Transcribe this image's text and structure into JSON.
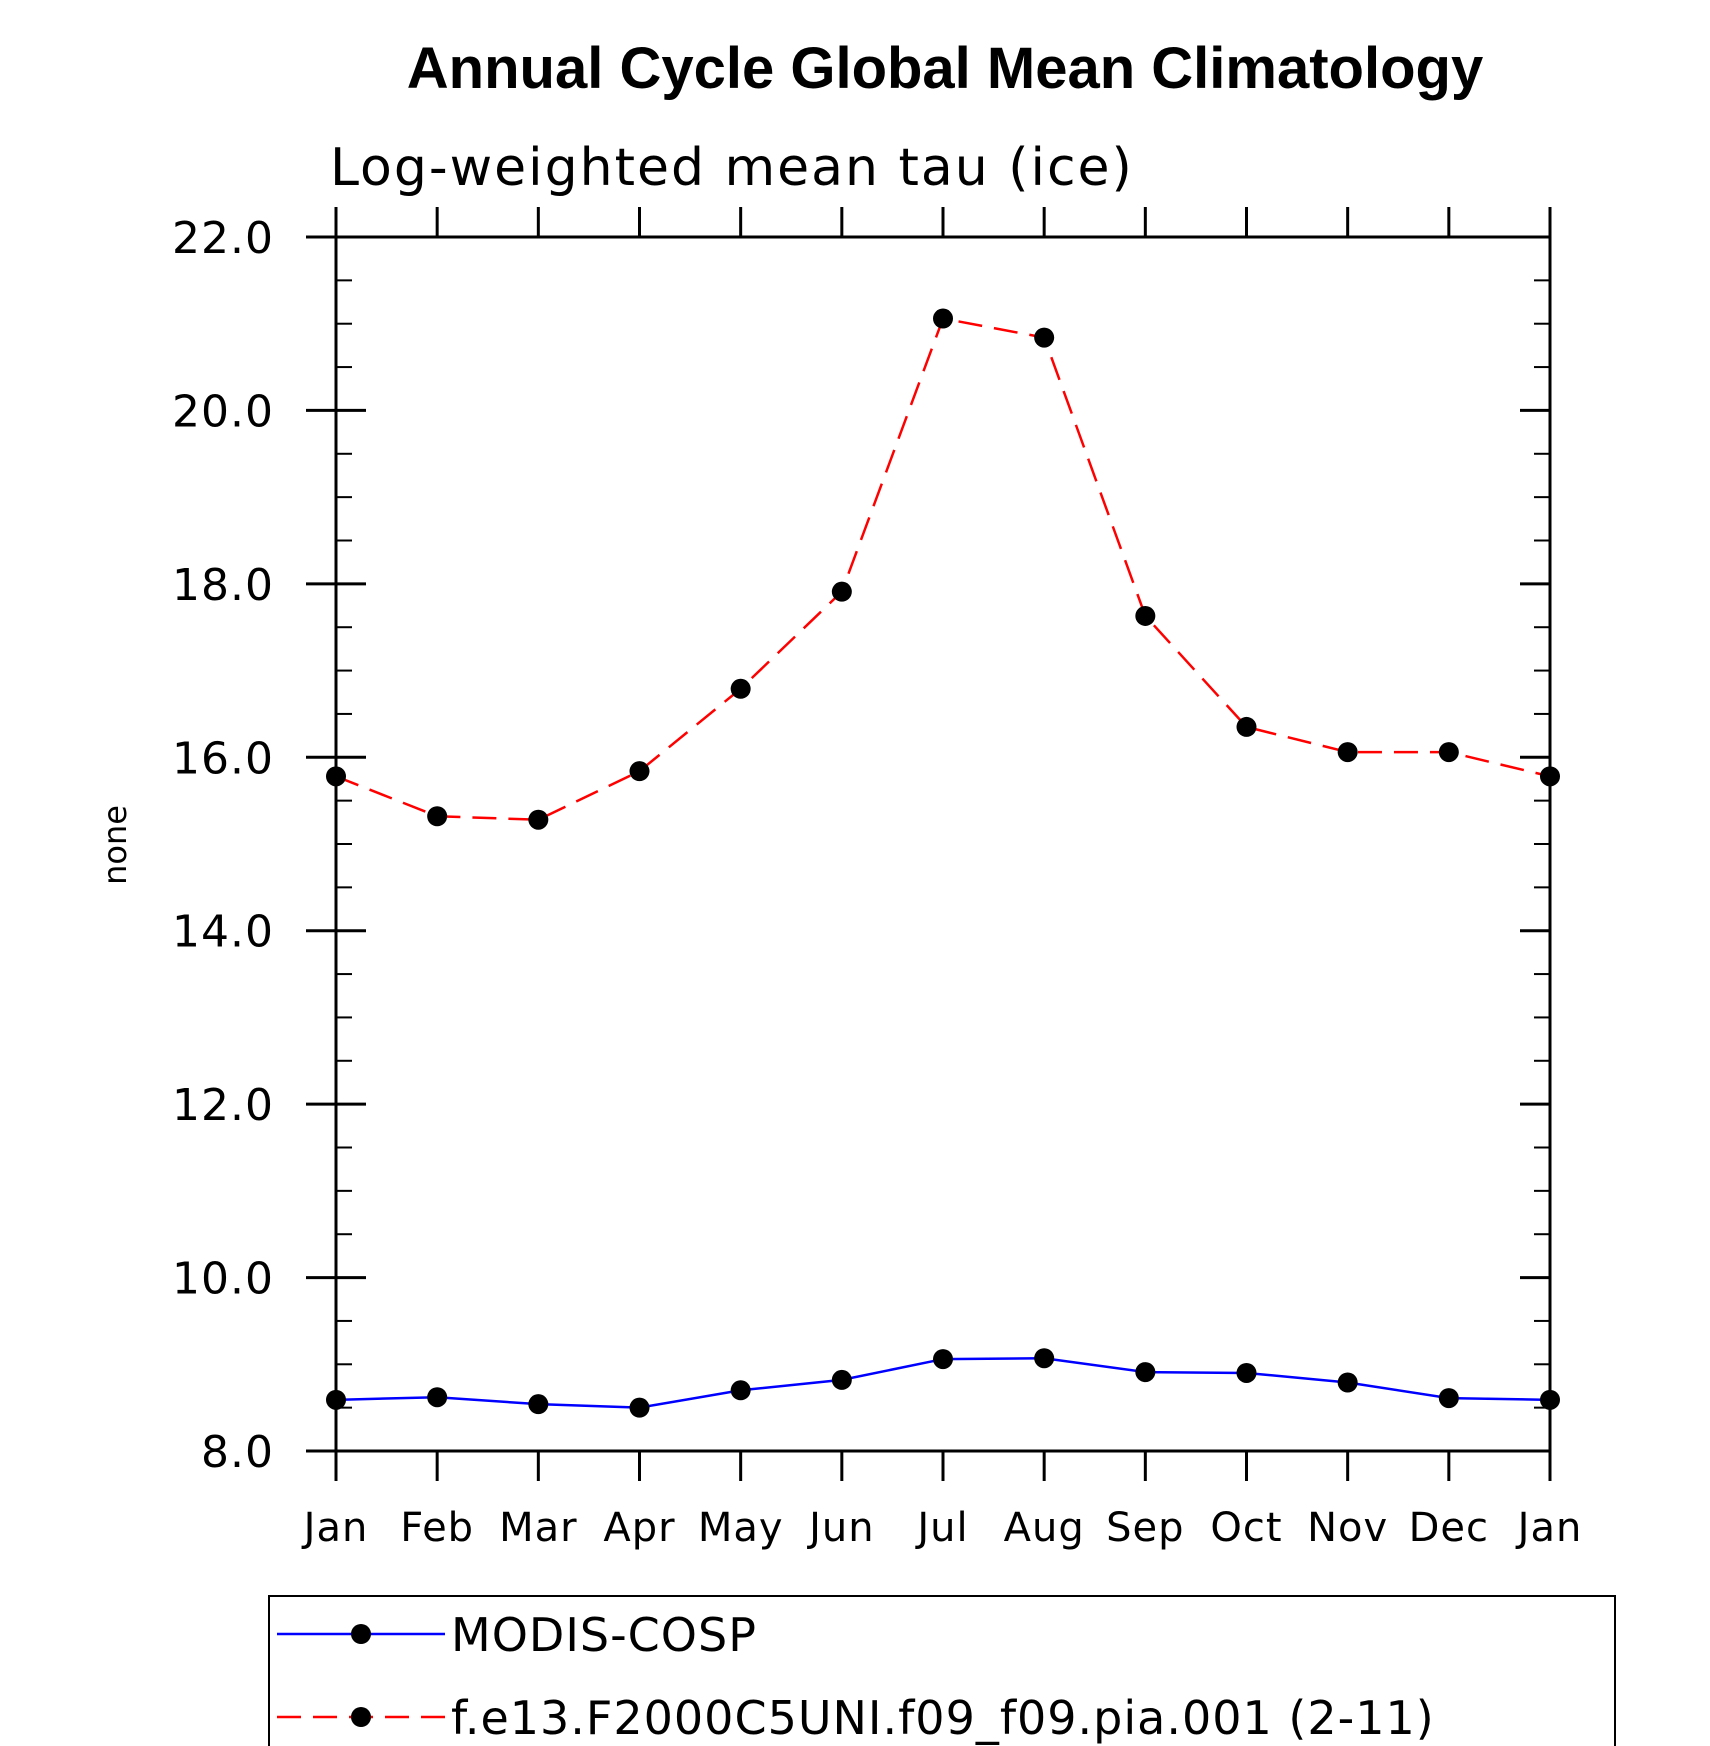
{
  "chart_data": {
    "type": "line",
    "title": "Annual Cycle Global Mean Climatology",
    "subtitle": "Log-weighted mean tau (ice)",
    "xlabel": "",
    "ylabel": "none",
    "categories": [
      "Jan",
      "Feb",
      "Mar",
      "Apr",
      "May",
      "Jun",
      "Jul",
      "Aug",
      "Sep",
      "Oct",
      "Nov",
      "Dec",
      "Jan"
    ],
    "ylim": [
      8.0,
      22.0
    ],
    "y_ticks": [
      "8.0",
      "10.0",
      "12.0",
      "14.0",
      "16.0",
      "18.0",
      "20.0",
      "22.0"
    ],
    "y_tick_values": [
      8,
      10,
      12,
      14,
      16,
      18,
      20,
      22
    ],
    "y_minor_step": 0.5,
    "grid": false,
    "legend_position": "bottom",
    "series": [
      {
        "name": "MODIS-COSP",
        "color": "#0000ff",
        "line_style": "solid",
        "marker": "filled-circle",
        "values": [
          8.59,
          8.62,
          8.54,
          8.5,
          8.7,
          8.82,
          9.06,
          9.07,
          8.91,
          8.9,
          8.79,
          8.61,
          8.59
        ]
      },
      {
        "name": "f.e13.F2000C5UNI.f09_f09.pia.001 (2-11)",
        "color": "#ff0000",
        "line_style": "dashed",
        "marker": "filled-circle",
        "values": [
          15.78,
          15.32,
          15.28,
          15.84,
          16.79,
          17.91,
          21.06,
          20.84,
          17.63,
          16.35,
          16.06,
          16.06,
          15.78
        ]
      }
    ]
  }
}
